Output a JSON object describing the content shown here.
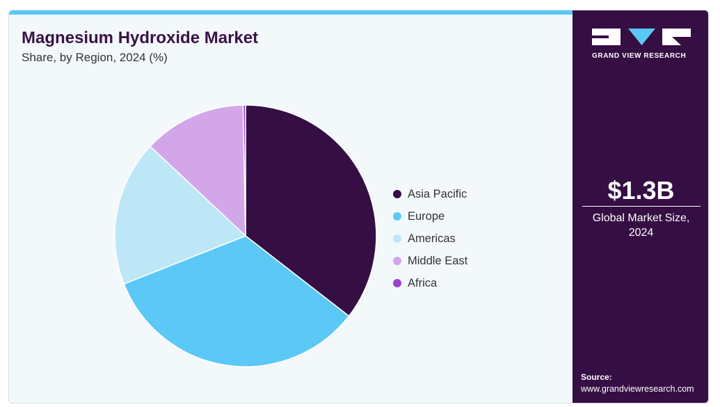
{
  "chart_data": {
    "type": "pie",
    "title": "Magnesium Hydroxide Market",
    "subtitle": "Share, by Region, 2024 (%)",
    "categories": [
      "Asia Pacific",
      "Europe",
      "Americas",
      "Middle East",
      "Africa"
    ],
    "values": [
      35.5,
      33.5,
      18.0,
      12.7,
      0.3
    ],
    "colors": [
      "#350e44",
      "#5bc8f5",
      "#bde7f7",
      "#d3a6ea",
      "#9b40d0"
    ],
    "legend_position": "right"
  },
  "sidebar": {
    "brand": "GRAND VIEW RESEARCH",
    "market_value": "$1.3B",
    "market_label": "Global Market Size, 2024",
    "source_label": "Source:",
    "source_url": "www.grandviewresearch.com"
  }
}
